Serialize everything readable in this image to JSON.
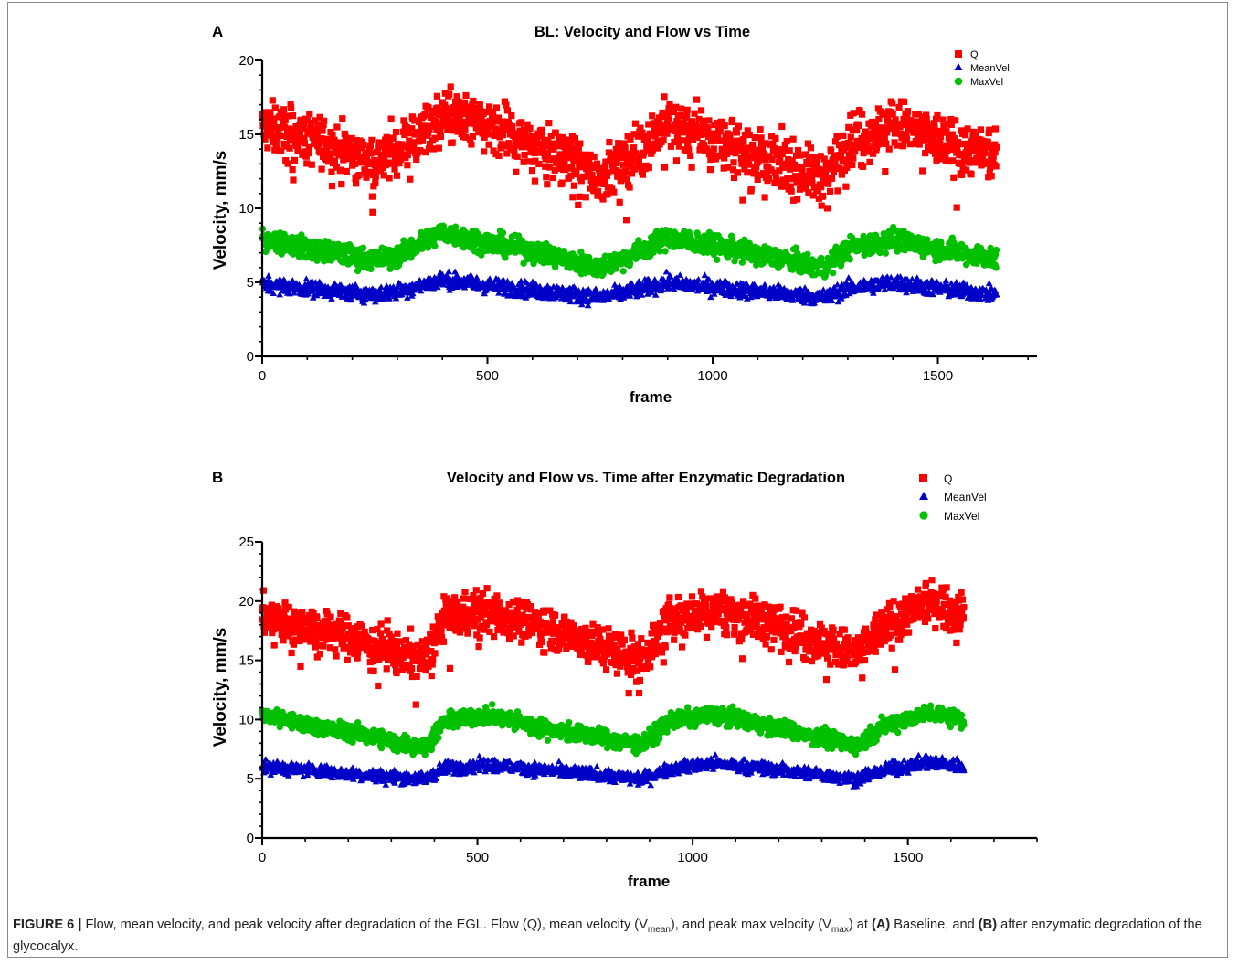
{
  "colors": {
    "Q": "#ff0000",
    "MeanVel": "#0000c8",
    "MaxVel": "#00c000"
  },
  "caption": {
    "fig_label": "FIGURE 6 |",
    "text1": " Flow, mean velocity, and peak velocity after degradation of the EGL. Flow (Q), mean velocity (V",
    "sub1": "mean",
    "text2": "), and peak max velocity (V",
    "sub2": "max",
    "text3": ") at ",
    "a_ref": "(A)",
    "text4": " Baseline, and ",
    "b_ref": "(B)",
    "text5": " after enzymatic degradation of the glycocalyx."
  },
  "chart_data": [
    {
      "panel_label": "A",
      "type": "scatter",
      "title": "BL: Velocity and Flow vs Time",
      "xlabel": "frame",
      "ylabel": "Velocity, mm/s",
      "xlim": [
        0,
        1720
      ],
      "ylim": [
        0,
        20
      ],
      "x_ticks": [
        0,
        500,
        1000,
        1500
      ],
      "y_ticks": [
        0,
        5,
        10,
        15,
        20
      ],
      "legend_position": "top-right",
      "n_points_per_series": 1630,
      "series": [
        {
          "name": "Q",
          "marker": "square",
          "trend": {
            "x": [
              0,
              100,
              250,
              300,
              400,
              500,
              600,
              750,
              800,
              900,
              1000,
              1100,
              1250,
              1300,
              1400,
              1500,
              1630
            ],
            "y": [
              15.5,
              14.8,
              13.2,
              14.0,
              16.3,
              15.5,
              14.5,
              12.2,
              13.0,
              15.8,
              14.8,
              13.6,
              12.0,
              14.5,
              15.8,
              14.6,
              13.5
            ]
          }
        },
        {
          "name": "MeanVel",
          "marker": "triangle",
          "trend": {
            "x": [
              0,
              100,
              250,
              300,
              400,
              500,
              600,
              750,
              800,
              900,
              1000,
              1100,
              1250,
              1300,
              1400,
              1500,
              1630
            ],
            "y": [
              4.9,
              4.6,
              4.2,
              4.4,
              5.2,
              4.8,
              4.5,
              4.0,
              4.3,
              5.0,
              4.7,
              4.4,
              4.0,
              4.6,
              5.0,
              4.6,
              4.2
            ]
          }
        },
        {
          "name": "MaxVel",
          "marker": "circle",
          "trend": {
            "x": [
              0,
              100,
              250,
              300,
              400,
              500,
              600,
              750,
              800,
              900,
              1000,
              1100,
              1250,
              1300,
              1400,
              1500,
              1630
            ],
            "y": [
              8.0,
              7.3,
              6.5,
              6.8,
              8.4,
              7.7,
              7.1,
              6.0,
              6.6,
              8.0,
              7.5,
              6.9,
              6.0,
              7.3,
              7.9,
              7.3,
              6.6
            ]
          }
        }
      ]
    },
    {
      "panel_label": "B",
      "type": "scatter",
      "title": "Velocity and Flow vs. Time after Enzymatic Degradation",
      "xlabel": "frame",
      "ylabel": "Velocity, mm/s",
      "xlim": [
        0,
        1800
      ],
      "ylim": [
        0,
        25
      ],
      "x_ticks": [
        0,
        500,
        1000,
        1500
      ],
      "y_ticks": [
        0,
        5,
        10,
        15,
        20,
        25
      ],
      "legend_position": "top-right",
      "n_points_per_series": 1630,
      "series": [
        {
          "name": "Q",
          "marker": "square",
          "trend": {
            "x": [
              0,
              100,
              250,
              380,
              420,
              520,
              650,
              880,
              950,
              1050,
              1200,
              1380,
              1450,
              1550,
              1630
            ],
            "y": [
              18.8,
              18.0,
              16.5,
              15.0,
              18.5,
              19.2,
              18.0,
              15.0,
              18.5,
              19.3,
              18.0,
              15.5,
              18.0,
              20.0,
              19.0
            ]
          }
        },
        {
          "name": "MeanVel",
          "marker": "triangle",
          "trend": {
            "x": [
              0,
              100,
              250,
              380,
              420,
              520,
              650,
              880,
              950,
              1050,
              1200,
              1380,
              1450,
              1550,
              1630
            ],
            "y": [
              6.0,
              5.8,
              5.3,
              5.0,
              5.9,
              6.2,
              5.8,
              5.0,
              5.9,
              6.3,
              5.8,
              5.0,
              5.8,
              6.4,
              6.1
            ]
          }
        },
        {
          "name": "MaxVel",
          "marker": "circle",
          "trend": {
            "x": [
              0,
              100,
              250,
              380,
              420,
              520,
              650,
              880,
              950,
              1050,
              1200,
              1380,
              1450,
              1550,
              1630
            ],
            "y": [
              10.4,
              9.6,
              8.6,
              7.6,
              9.8,
              10.4,
              9.3,
              7.9,
              9.9,
              10.4,
              9.3,
              7.8,
              9.6,
              10.6,
              10.0
            ]
          }
        }
      ]
    }
  ]
}
